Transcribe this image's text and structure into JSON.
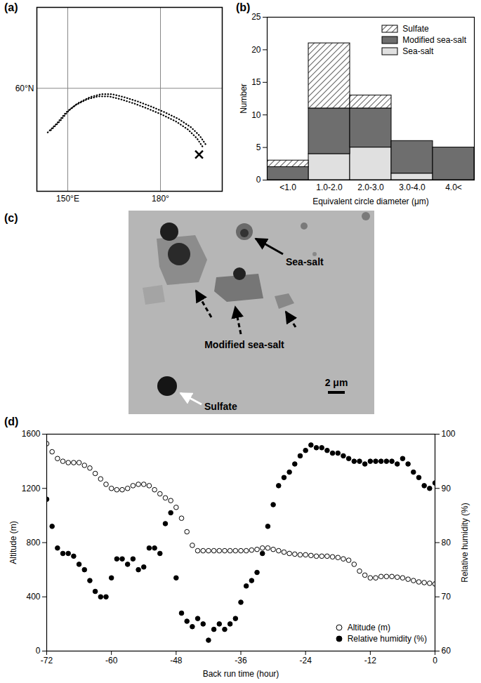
{
  "chart_data": [
    {
      "type": "map",
      "title": "(a)",
      "grid": true,
      "xlim": [
        140,
        200
      ],
      "ylim": [
        32,
        82
      ],
      "xticks": [
        {
          "value": 150,
          "label": "150°E"
        },
        {
          "value": 180,
          "label": "180°"
        }
      ],
      "yticks": [
        {
          "value": 60,
          "label": "60°N"
        }
      ],
      "series": [
        {
          "color": "#000000",
          "line_style": "dotted",
          "x": [
            143.5,
            146.4,
            149.4,
            152.4,
            156.2,
            159.8,
            163.4,
            167.2,
            171.7,
            176.1,
            180.6,
            185.0,
            188.9,
            191.8,
            193.9
          ],
          "values": [
            48.0,
            50.4,
            53.4,
            55.4,
            57.0,
            57.8,
            57.8,
            57.0,
            55.8,
            54.4,
            52.8,
            51.0,
            48.8,
            46.4,
            43.8
          ]
        },
        {
          "color": "#000000",
          "line_style": "dotted",
          "x": [
            144.5,
            147.4,
            150.4,
            153.4,
            157.2,
            160.8,
            164.4,
            168.2,
            172.7,
            177.1,
            181.6,
            186.0,
            189.9,
            192.8,
            194.9
          ],
          "values": [
            48.6,
            51.0,
            54.0,
            56.0,
            57.6,
            58.4,
            58.4,
            57.6,
            56.4,
            55.0,
            53.4,
            51.6,
            49.4,
            47.0,
            44.4
          ]
        },
        {
          "color": "#000000",
          "marker": "x",
          "x": [
            192.5
          ],
          "values": [
            42.0
          ]
        }
      ]
    },
    {
      "type": "bar",
      "title": "(b)",
      "stacked": true,
      "legend": "top-right",
      "xlabel": "Equivalent circle diameter (μm)",
      "ylabel": "Number",
      "categories": [
        "<1.0",
        "1.0-2.0",
        "2.0-3.0",
        "3.0-4.0",
        "4.0<"
      ],
      "ylim": [
        0,
        25
      ],
      "yticks": [
        0,
        5,
        10,
        15,
        20,
        25
      ],
      "series": [
        {
          "name": "Sea-salt",
          "color": "#e0e0e0",
          "values": [
            0,
            4,
            5,
            1,
            0
          ]
        },
        {
          "name": "Modified sea-salt",
          "color": "#6e6e6e",
          "values": [
            2,
            7,
            6,
            5,
            5
          ]
        },
        {
          "name": "Sulfate",
          "color": "#000000",
          "line_style": "hatched",
          "values": [
            1,
            10,
            2,
            0,
            0
          ]
        }
      ]
    },
    {
      "type": "image",
      "title": "(c)",
      "labels": {
        "sea_salt": "Sea-salt",
        "modified": "Modified sea-salt",
        "sulfate": "Sulfate",
        "scale": "2 μm"
      }
    },
    {
      "type": "scatter",
      "title": "(d)",
      "legend": "bottom-right",
      "xlabel": "Back run time (hour)",
      "ylabel": "Altitude (m)",
      "y2label": "Relative humidity (%)",
      "xlim": [
        -72,
        0
      ],
      "xticks": [
        -72,
        -60,
        -48,
        -36,
        -24,
        -12,
        0
      ],
      "ylim": [
        0,
        1600
      ],
      "yticks": [
        0,
        400,
        800,
        1200,
        1600
      ],
      "y2lim": [
        60,
        100
      ],
      "y2ticks": [
        60,
        70,
        80,
        90,
        100
      ],
      "x": [
        -72,
        -71,
        -70,
        -69,
        -68,
        -67,
        -66,
        -65,
        -64,
        -63,
        -62,
        -61,
        -60,
        -59,
        -58,
        -57,
        -56,
        -55,
        -54,
        -53,
        -52,
        -51,
        -50,
        -49,
        -48,
        -47,
        -46,
        -45,
        -44,
        -43,
        -42,
        -41,
        -40,
        -39,
        -38,
        -37,
        -36,
        -35,
        -34,
        -33,
        -32,
        -31,
        -30,
        -29,
        -28,
        -27,
        -26,
        -25,
        -24,
        -23,
        -22,
        -21,
        -20,
        -19,
        -18,
        -17,
        -16,
        -15,
        -14,
        -13,
        -12,
        -11,
        -10,
        -9,
        -8,
        -7,
        -6,
        -5,
        -4,
        -3,
        -2,
        -1,
        0
      ],
      "series": [
        {
          "name": "Altitude (m)",
          "color": "#000000",
          "marker": "circle-open",
          "values": [
            1530,
            1470,
            1420,
            1400,
            1390,
            1390,
            1390,
            1370,
            1350,
            1310,
            1270,
            1230,
            1200,
            1190,
            1190,
            1200,
            1220,
            1230,
            1230,
            1220,
            1190,
            1160,
            1130,
            1110,
            1060,
            980,
            880,
            780,
            740,
            740,
            740,
            740,
            740,
            740,
            740,
            740,
            740,
            740,
            745,
            750,
            760,
            760,
            750,
            740,
            730,
            720,
            715,
            710,
            710,
            705,
            700,
            700,
            700,
            695,
            690,
            680,
            670,
            640,
            590,
            560,
            540,
            540,
            550,
            550,
            550,
            545,
            540,
            530,
            520,
            510,
            505,
            500,
            495
          ]
        },
        {
          "name": "Relative humidity (%)",
          "color": "#000000",
          "marker": "circle",
          "axis": "y2",
          "values": [
            88,
            83,
            79,
            78,
            78,
            77.5,
            76,
            75,
            73,
            71,
            70,
            70,
            73.5,
            77,
            77,
            76,
            77,
            75,
            75.5,
            79,
            79,
            78,
            83.5,
            85.5,
            73.5,
            67,
            65.5,
            64.5,
            66,
            65,
            62,
            64,
            65,
            64,
            65,
            66,
            69,
            72,
            73,
            74.5,
            78,
            83,
            87,
            90.5,
            92,
            93,
            94.5,
            96,
            97,
            98,
            97.5,
            97.5,
            97,
            96.5,
            96.5,
            96,
            95.5,
            95,
            95,
            94.5,
            95,
            95,
            95,
            95,
            95,
            94.5,
            95.5,
            94.5,
            93,
            92,
            90.5,
            90,
            91
          ]
        }
      ]
    }
  ]
}
